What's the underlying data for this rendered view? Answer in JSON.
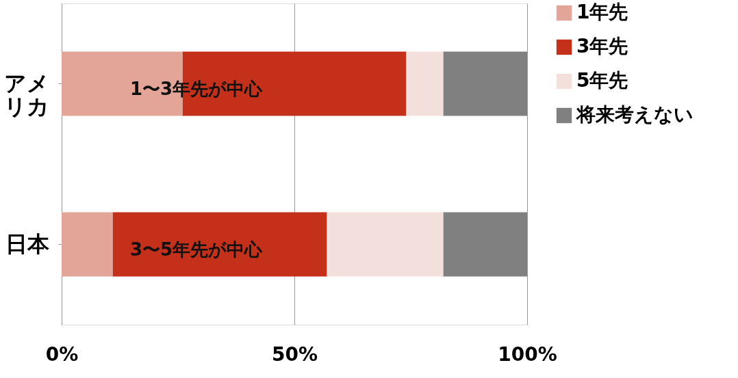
{
  "chart_data": {
    "type": "bar",
    "orientation": "horizontal",
    "stacked": true,
    "categories": [
      "アメリカ",
      "日本"
    ],
    "series": [
      {
        "name": "1年先",
        "color": "#e3a597",
        "values": [
          0.26,
          0.11
        ]
      },
      {
        "name": "3年先",
        "color": "#c4301a",
        "values": [
          0.48,
          0.46
        ]
      },
      {
        "name": "5年先",
        "color": "#f3e0dc",
        "values": [
          0.08,
          0.25
        ]
      },
      {
        "name": "将来考えない",
        "color": "#808080",
        "values": [
          0.18,
          0.18
        ]
      }
    ],
    "xlim": [
      0,
      1
    ],
    "xticks": [
      {
        "value": 0,
        "label": "0%"
      },
      {
        "value": 0.5,
        "label": "50%"
      },
      {
        "value": 1,
        "label": "100%"
      }
    ],
    "grid": "x",
    "legend": "right",
    "annotations": [
      "1〜3年先が中心",
      "3〜5年先が中心"
    ]
  }
}
